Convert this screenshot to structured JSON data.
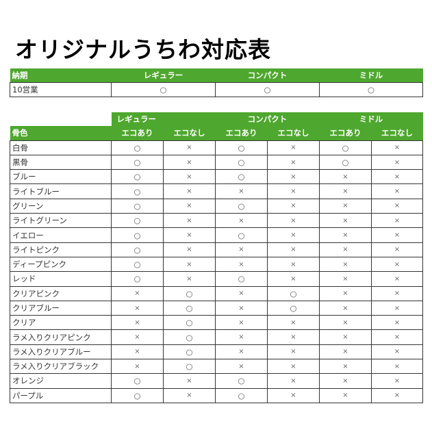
{
  "title": "オリジナルうちわ対応表",
  "colors": {
    "header_green": "#4ea72e"
  },
  "delivery_table": {
    "headers": [
      "納期",
      "レギュラー",
      "コンパクト",
      "ミドル"
    ],
    "row": {
      "label": "10営業",
      "values": [
        "○",
        "○",
        "○"
      ]
    }
  },
  "color_table": {
    "groups": [
      "レギュラー",
      "コンパクト",
      "ミドル"
    ],
    "row_header": "骨色",
    "subheaders": [
      "エコあり",
      "エコなし",
      "エコあり",
      "エコなし",
      "エコあり",
      "エコなし"
    ],
    "rows": [
      {
        "label": "白骨",
        "values": [
          "○",
          "×",
          "○",
          "×",
          "○",
          "×"
        ]
      },
      {
        "label": "黒骨",
        "values": [
          "○",
          "×",
          "○",
          "×",
          "○",
          "×"
        ]
      },
      {
        "label": "ブルー",
        "values": [
          "○",
          "×",
          "○",
          "×",
          "×",
          "×"
        ]
      },
      {
        "label": "ライトブルー",
        "values": [
          "○",
          "×",
          "×",
          "×",
          "×",
          "×"
        ]
      },
      {
        "label": "グリーン",
        "values": [
          "○",
          "×",
          "○",
          "×",
          "×",
          "×"
        ]
      },
      {
        "label": "ライトグリーン",
        "values": [
          "○",
          "×",
          "×",
          "×",
          "×",
          "×"
        ]
      },
      {
        "label": "イエロー",
        "values": [
          "○",
          "×",
          "○",
          "×",
          "×",
          "×"
        ]
      },
      {
        "label": "ライトピンク",
        "values": [
          "○",
          "×",
          "×",
          "×",
          "×",
          "×"
        ]
      },
      {
        "label": "ディープピンク",
        "values": [
          "○",
          "×",
          "×",
          "×",
          "×",
          "×"
        ]
      },
      {
        "label": "レッド",
        "values": [
          "○",
          "×",
          "○",
          "×",
          "×",
          "×"
        ]
      },
      {
        "label": "クリアピンク",
        "values": [
          "×",
          "○",
          "×",
          "○",
          "×",
          "×"
        ]
      },
      {
        "label": "クリアブルー",
        "values": [
          "×",
          "○",
          "×",
          "○",
          "×",
          "×"
        ]
      },
      {
        "label": "クリア",
        "values": [
          "×",
          "○",
          "×",
          "×",
          "×",
          "×"
        ]
      },
      {
        "label": "ラメ入りクリアピンク",
        "values": [
          "×",
          "○",
          "×",
          "×",
          "×",
          "×"
        ]
      },
      {
        "label": "ラメ入りクリアブルー",
        "values": [
          "×",
          "○",
          "×",
          "×",
          "×",
          "×"
        ]
      },
      {
        "label": "ラメ入りクリアブラック",
        "values": [
          "×",
          "○",
          "×",
          "×",
          "×",
          "×"
        ]
      },
      {
        "label": "オレンジ",
        "values": [
          "○",
          "×",
          "○",
          "×",
          "×",
          "×"
        ]
      },
      {
        "label": "パープル",
        "values": [
          "○",
          "×",
          "○",
          "×",
          "×",
          "×"
        ]
      }
    ]
  }
}
